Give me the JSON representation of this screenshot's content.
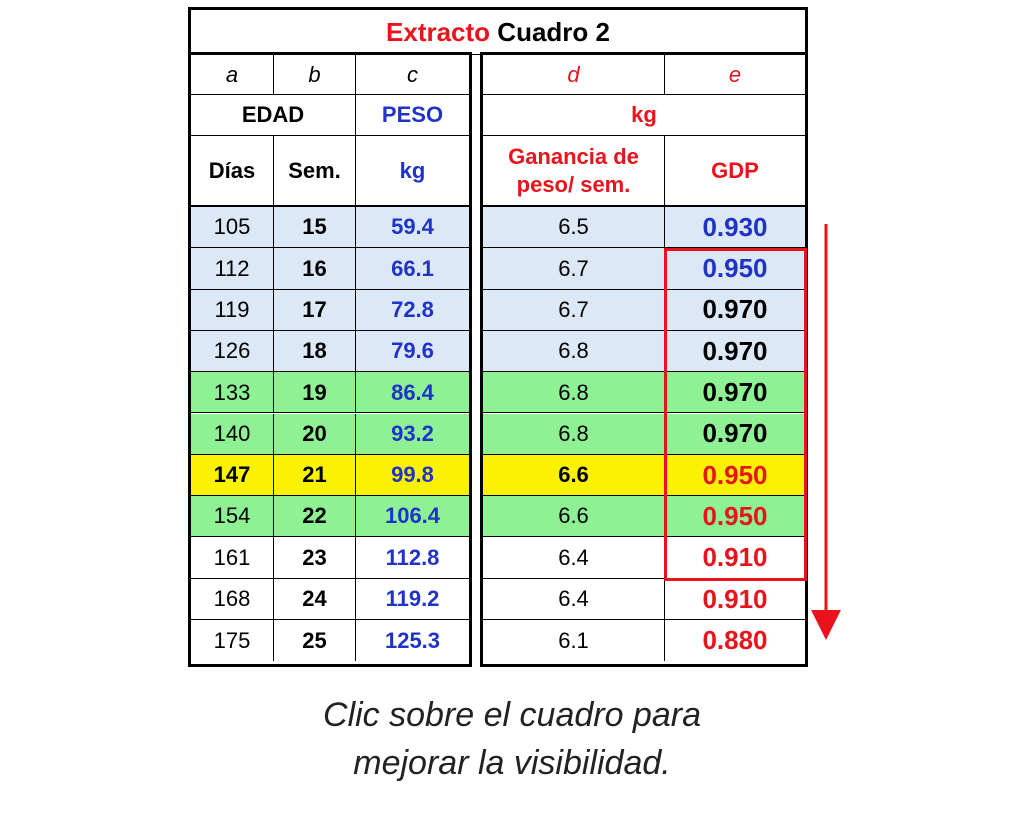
{
  "title": {
    "part1": "Extracto",
    "part2": " Cuadro 2"
  },
  "col_letters": [
    "a",
    "b",
    "c",
    "d",
    "e"
  ],
  "header_row1": {
    "edad": "EDAD",
    "peso": "PESO",
    "kg": "kg"
  },
  "header_row2": {
    "dias": "Días",
    "sem": "Sem.",
    "kg": "kg",
    "ganancia": "Ganancia de peso/ sem.",
    "gdp": "GDP"
  },
  "rows": [
    {
      "dias": "105",
      "sem": "15",
      "peso": "59.4",
      "ganancia": "6.5",
      "gdp": "0.930",
      "bg": "#dce8f5",
      "gdp_color": "#1f33c8",
      "highlight": false
    },
    {
      "dias": "112",
      "sem": "16",
      "peso": "66.1",
      "ganancia": "6.7",
      "gdp": "0.950",
      "bg": "#dce8f5",
      "gdp_color": "#1f33c8",
      "highlight": false
    },
    {
      "dias": "119",
      "sem": "17",
      "peso": "72.8",
      "ganancia": "6.7",
      "gdp": "0.970",
      "bg": "#dce8f5",
      "gdp_color": "#000000",
      "highlight": false
    },
    {
      "dias": "126",
      "sem": "18",
      "peso": "79.6",
      "ganancia": "6.8",
      "gdp": "0.970",
      "bg": "#dce8f5",
      "gdp_color": "#000000",
      "highlight": false
    },
    {
      "dias": "133",
      "sem": "19",
      "peso": "86.4",
      "ganancia": "6.8",
      "gdp": "0.970",
      "bg": "#8ef294",
      "gdp_color": "#000000",
      "highlight": false
    },
    {
      "dias": "140",
      "sem": "20",
      "peso": "93.2",
      "ganancia": "6.8",
      "gdp": "0.970",
      "bg": "#8ef294",
      "gdp_color": "#000000",
      "highlight": false
    },
    {
      "dias": "147",
      "sem": "21",
      "peso": "99.8",
      "ganancia": "6.6",
      "gdp": "0.950",
      "bg": "#fbf203",
      "gdp_color": "#e8131b",
      "highlight": true
    },
    {
      "dias": "154",
      "sem": "22",
      "peso": "106.4",
      "ganancia": "6.6",
      "gdp": "0.950",
      "bg": "#8ef294",
      "gdp_color": "#e8131b",
      "highlight": false
    },
    {
      "dias": "161",
      "sem": "23",
      "peso": "112.8",
      "ganancia": "6.4",
      "gdp": "0.910",
      "bg": "#ffffff",
      "gdp_color": "#e8131b",
      "highlight": false
    },
    {
      "dias": "168",
      "sem": "24",
      "peso": "119.2",
      "ganancia": "6.4",
      "gdp": "0.910",
      "bg": "#ffffff",
      "gdp_color": "#e8131b",
      "highlight": false
    },
    {
      "dias": "175",
      "sem": "25",
      "peso": "125.3",
      "ganancia": "6.1",
      "gdp": "0.880",
      "bg": "#ffffff",
      "gdp_color": "#e8131b",
      "highlight": false
    }
  ],
  "caption": {
    "line1": "Clic sobre el cuadro para",
    "line2": "mejorar la visibilidad."
  },
  "colors": {
    "red": "#e8131b",
    "blue": "#1f33c8"
  }
}
